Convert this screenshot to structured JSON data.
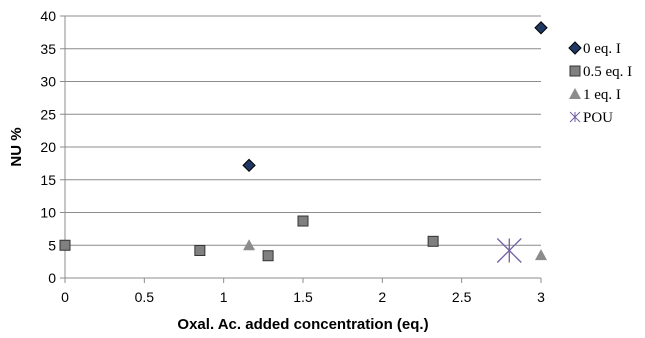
{
  "chart_data": {
    "type": "scatter",
    "title": "",
    "xlabel": "Oxal. Ac. added concentration (eq.)",
    "ylabel": "NU %",
    "xlim": [
      0,
      3
    ],
    "ylim": [
      0,
      40
    ],
    "x_ticks": [
      "0",
      "0.5",
      "1",
      "1.5",
      "2",
      "2.5",
      "3"
    ],
    "y_ticks": [
      "0",
      "5",
      "10",
      "15",
      "20",
      "25",
      "30",
      "35",
      "40"
    ],
    "grid": "horizontal",
    "legend_position": "right",
    "series": [
      {
        "name": "0 eq. I",
        "marker": "diamond",
        "color": "#1f3864",
        "x": [
          1.16,
          3.0
        ],
        "y": [
          17.2,
          38.2
        ]
      },
      {
        "name": "0.5 eq. I",
        "marker": "square",
        "color": "#808080",
        "x": [
          0.0,
          0.85,
          1.28,
          1.5,
          2.32
        ],
        "y": [
          5.0,
          4.2,
          3.4,
          8.7,
          5.6
        ]
      },
      {
        "name": "1 eq. I",
        "marker": "triangle",
        "color": "#8c8c8c",
        "x": [
          1.16,
          3.0
        ],
        "y": [
          5.0,
          3.5
        ]
      },
      {
        "name": "POU",
        "marker": "star",
        "color": "#7060a0",
        "x": [
          2.8
        ],
        "y": [
          4.2
        ]
      }
    ]
  }
}
